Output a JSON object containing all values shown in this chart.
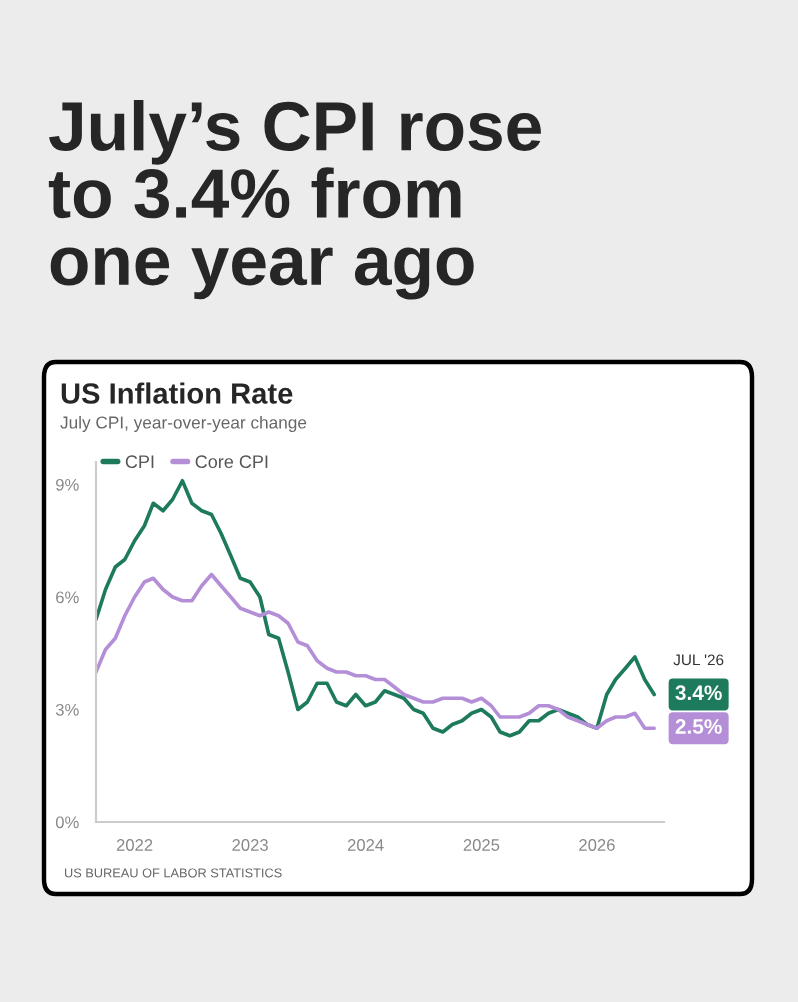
{
  "chart_data": {
    "type": "line",
    "title": "US Inflation Rate",
    "subtitle": "July CPI, year-over-year change",
    "annotations": [
      "July’s CPI rose\nto 3.4% from\none year ago",
      {
        "text": "JUL '26",
        "x": "2026-07",
        "y": 3.4
      },
      {
        "text": "3.4%",
        "x": "2026-07",
        "y": 3.4
      },
      {
        "text": "2.5%",
        "x": "2026-07",
        "y": 2.5
      },
      "US BUREAU OF LABOR STATISTICS"
    ],
    "x": [
      "2021-09",
      "2021-10",
      "2021-11",
      "2021-12",
      "2022-01",
      "2022-02",
      "2022-03",
      "2022-04",
      "2022-05",
      "2022-06",
      "2022-07",
      "2022-08",
      "2022-09",
      "2022-10",
      "2022-11",
      "2022-12",
      "2023-01",
      "2023-02",
      "2023-03",
      "2023-04",
      "2023-05",
      "2023-06",
      "2023-07",
      "2023-08",
      "2023-09",
      "2023-10",
      "2023-11",
      "2023-12",
      "2024-01",
      "2024-02",
      "2024-03",
      "2024-04",
      "2024-05",
      "2024-06",
      "2024-07",
      "2024-08",
      "2024-09",
      "2024-10",
      "2024-11",
      "2024-12",
      "2025-01",
      "2025-02",
      "2025-03",
      "2025-04",
      "2025-05",
      "2025-06",
      "2025-07",
      "2025-08",
      "2025-09",
      "2025-10",
      "2025-11",
      "2025-12",
      "2026-01",
      "2026-02",
      "2026-03",
      "2026-04",
      "2026-05",
      "2026-06",
      "2026-07"
    ],
    "series": [
      {
        "name": "CPI",
        "color": "#1d7a5c",
        "values": [
          5.4,
          6.2,
          6.8,
          7.0,
          7.5,
          7.9,
          8.5,
          8.3,
          8.6,
          9.1,
          8.5,
          8.3,
          8.2,
          7.7,
          7.1,
          6.5,
          6.4,
          6.0,
          5.0,
          4.9,
          4.0,
          3.0,
          3.2,
          3.7,
          3.7,
          3.2,
          3.1,
          3.4,
          3.1,
          3.2,
          3.5,
          3.4,
          3.3,
          3.0,
          2.9,
          2.5,
          2.4,
          2.6,
          2.7,
          2.9,
          3.0,
          2.8,
          2.4,
          2.3,
          2.4,
          2.7,
          2.7,
          2.9,
          3.0,
          2.9,
          2.8,
          2.6,
          2.5,
          3.4,
          3.8,
          4.1,
          4.4,
          3.8,
          3.4
        ]
      },
      {
        "name": "Core CPI",
        "color": "#b48fd8",
        "values": [
          4.0,
          4.6,
          4.9,
          5.5,
          6.0,
          6.4,
          6.5,
          6.2,
          6.0,
          5.9,
          5.9,
          6.3,
          6.6,
          6.3,
          6.0,
          5.7,
          5.6,
          5.5,
          5.6,
          5.5,
          5.3,
          4.8,
          4.7,
          4.3,
          4.1,
          4.0,
          4.0,
          3.9,
          3.9,
          3.8,
          3.8,
          3.6,
          3.4,
          3.3,
          3.2,
          3.2,
          3.3,
          3.3,
          3.3,
          3.2,
          3.3,
          3.1,
          2.8,
          2.8,
          2.8,
          2.9,
          3.1,
          3.1,
          3.0,
          2.8,
          2.7,
          2.6,
          2.5,
          2.7,
          2.8,
          2.8,
          2.9,
          2.5,
          2.5
        ]
      }
    ],
    "xlim": [
      "2021-09",
      "2026-08"
    ],
    "xticks": [
      {
        "value": "2022-01",
        "label": "2022"
      },
      {
        "value": "2023-01",
        "label": "2023"
      },
      {
        "value": "2024-01",
        "label": "2024"
      },
      {
        "value": "2025-01",
        "label": "2025"
      },
      {
        "value": "2026-01",
        "label": "2026"
      }
    ],
    "ylim": [
      0,
      9.6
    ],
    "yticks": [
      {
        "value": 0,
        "label": "0%"
      },
      {
        "value": 3,
        "label": "3%"
      },
      {
        "value": 6,
        "label": "6%"
      },
      {
        "value": 9,
        "label": "9%"
      }
    ],
    "legend": "top left",
    "line_style": "solid"
  }
}
